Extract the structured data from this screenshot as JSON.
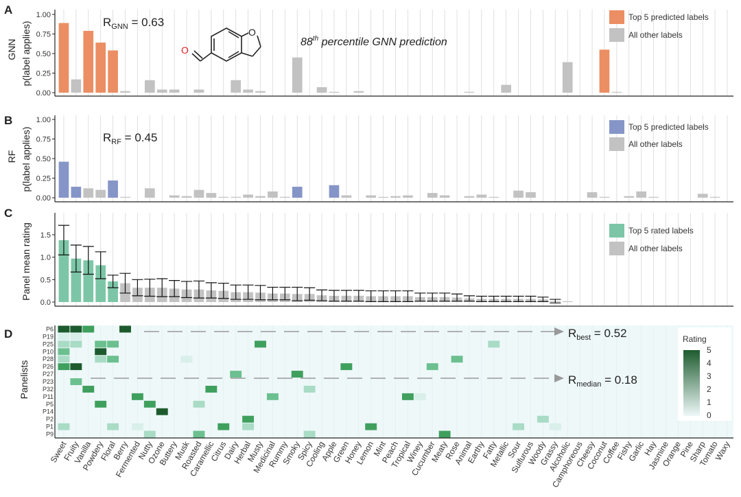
{
  "colors": {
    "gnn_top": "#EB8E63",
    "rf_top": "#8695C8",
    "rated_top": "#7CC6A7",
    "other": "#C2C2C2",
    "heat_bg": "#EEF8F9",
    "heat_max": "#1D5B2E",
    "axis": "#222222",
    "vline": "#D8D8D8"
  },
  "chart_data": {
    "type": "bar",
    "categories": [
      "Sweet",
      "Fruity",
      "Vanilla",
      "Powdery",
      "Floral",
      "Berry",
      "Fermented",
      "Nutty",
      "Ozone",
      "Buttery",
      "Musk",
      "Roasted",
      "Caramellic",
      "Citrus",
      "Dairy",
      "Herbal",
      "Musty",
      "Medicinal",
      "Rummy",
      "Smoky",
      "Spicy",
      "Cooling",
      "Apple",
      "Green",
      "Honey",
      "Lemon",
      "Mint",
      "Peach",
      "Tropical",
      "Winey",
      "Cucumber",
      "Meaty",
      "Rose",
      "Animal",
      "Earthy",
      "Fatty",
      "Metallic",
      "Sour",
      "Sulfurous",
      "Woody",
      "Grassy",
      "Alcoholic",
      "Camphoreous",
      "Cheesy",
      "Coconut",
      "Coffee",
      "Fishy",
      "Garlic",
      "Hay",
      "Jasmine",
      "Orange",
      "Pine",
      "Sharp",
      "Tomato",
      "Waxy"
    ],
    "panels": [
      {
        "letter": "A",
        "type": "bar",
        "ylabel": "p(label applies)",
        "model": "GNN",
        "ylim": [
          0,
          1.0
        ],
        "yticks": [
          "0.00",
          "0.25",
          "0.50",
          "0.75",
          "1.00"
        ],
        "values": [
          0.89,
          0.17,
          0.79,
          0.64,
          0.54,
          0.02,
          0.0,
          0.16,
          0.04,
          0.04,
          0.0,
          0.04,
          0.0,
          0.0,
          0.16,
          0.04,
          0.02,
          0.0,
          0.0,
          0.45,
          0.0,
          0.07,
          0.01,
          0.0,
          0.02,
          0.0,
          0.0,
          0.0,
          0.0,
          0.0,
          0.0,
          0.0,
          0.0,
          0.01,
          0.0,
          0.0,
          0.1,
          0.0,
          0.0,
          0.0,
          0.0,
          0.39,
          0.0,
          0.0,
          0.55,
          0.01,
          0.0,
          0.0,
          0.0,
          0.0,
          0.0,
          0.0,
          0.0,
          0.0,
          0.0
        ],
        "highlight": [
          0,
          2,
          3,
          4,
          44
        ],
        "r_label": "R",
        "r_sub": "GNN",
        "r_value": " = 0.63",
        "annotation_sup": "th",
        "annotation_num": "88",
        "annotation_text": " percentile GNN prediction",
        "molecule_atom_label": "O",
        "legend": [
          "Top 5 predicted labels",
          "All other labels"
        ]
      },
      {
        "letter": "B",
        "type": "bar",
        "ylabel": "p(label applies)",
        "model": "RF",
        "ylim": [
          0,
          1.0
        ],
        "yticks": [
          "0.00",
          "0.25",
          "0.50",
          "0.75",
          "1.00"
        ],
        "values": [
          0.46,
          0.14,
          0.12,
          0.1,
          0.22,
          0.01,
          0.0,
          0.12,
          0.0,
          0.03,
          0.02,
          0.1,
          0.06,
          0.01,
          0.01,
          0.04,
          0.02,
          0.08,
          0.01,
          0.14,
          0.0,
          0.0,
          0.16,
          0.03,
          0.0,
          0.03,
          0.01,
          0.02,
          0.03,
          0.0,
          0.06,
          0.03,
          0.0,
          0.02,
          0.04,
          0.01,
          0.0,
          0.09,
          0.07,
          0.0,
          0.0,
          0.0,
          0.0,
          0.07,
          0.01,
          0.0,
          0.02,
          0.08,
          0.01,
          0.0,
          0.0,
          0.0,
          0.05,
          0.01,
          0.0
        ],
        "highlight": [
          0,
          1,
          4,
          19,
          22
        ],
        "r_label": "R",
        "r_sub": "RF",
        "r_value": " = 0.45",
        "legend": [
          "Top 5 predicted labels",
          "All other labels"
        ]
      },
      {
        "letter": "C",
        "type": "bar",
        "ylabel": "Panel mean rating",
        "ylim": [
          -0.1,
          1.85
        ],
        "yticks": [
          "0.0",
          "0.5",
          "1.0",
          "1.5"
        ],
        "values": [
          1.38,
          0.97,
          0.93,
          0.82,
          0.46,
          0.42,
          0.32,
          0.32,
          0.32,
          0.3,
          0.28,
          0.28,
          0.26,
          0.25,
          0.22,
          0.22,
          0.21,
          0.19,
          0.19,
          0.18,
          0.18,
          0.15,
          0.14,
          0.14,
          0.14,
          0.13,
          0.13,
          0.13,
          0.13,
          0.11,
          0.11,
          0.11,
          0.1,
          0.08,
          0.07,
          0.07,
          0.07,
          0.07,
          0.07,
          0.06,
          0.02,
          0.01,
          0.0,
          0.0,
          0.0,
          0.0,
          0.0,
          0.0,
          0.0,
          0.0,
          0.0,
          0.0,
          0.0,
          0.0,
          0.0
        ],
        "errors": [
          0.33,
          0.3,
          0.31,
          0.3,
          0.14,
          0.22,
          0.18,
          0.19,
          0.2,
          0.18,
          0.18,
          0.19,
          0.17,
          0.17,
          0.16,
          0.16,
          0.16,
          0.14,
          0.14,
          0.15,
          0.14,
          0.12,
          0.12,
          0.12,
          0.12,
          0.12,
          0.12,
          0.12,
          0.12,
          0.09,
          0.09,
          0.09,
          0.08,
          0.06,
          0.06,
          0.06,
          0.06,
          0.06,
          0.06,
          0.05,
          0.04,
          0.0,
          0.0,
          0.0,
          0.0,
          0.0,
          0.0,
          0.0,
          0.0,
          0.0,
          0.0,
          0.0,
          0.0,
          0.0,
          0.0
        ],
        "highlight": [
          0,
          1,
          2,
          3,
          4
        ],
        "legend": [
          "Top 5 rated labels",
          "All other labels"
        ]
      },
      {
        "letter": "D",
        "type": "heatmap",
        "ylabel": "Panelists",
        "rows": [
          "P6",
          "P19",
          "P25",
          "P10",
          "P28",
          "P26",
          "P27",
          "P23",
          "P32",
          "P11",
          "P5",
          "P14",
          "P2",
          "P1",
          "P9"
        ],
        "cells": [
          [
            0,
            5
          ],
          [
            1,
            5
          ],
          [
            2,
            4
          ],
          [
            5,
            5
          ],
          [
            0,
            1
          ],
          [
            1,
            1
          ],
          [
            0,
            2
          ],
          [
            1,
            2
          ],
          [
            3,
            3
          ],
          [
            4,
            3
          ],
          [
            16,
            4
          ],
          [
            35,
            2
          ],
          [
            0,
            3
          ],
          [
            3,
            5
          ],
          [
            0,
            2
          ],
          [
            3,
            2
          ],
          [
            4,
            3
          ],
          [
            10,
            1
          ],
          [
            32,
            3
          ],
          [
            0,
            4
          ],
          [
            1,
            5
          ],
          [
            23,
            4
          ],
          [
            30,
            3
          ],
          [
            14,
            3
          ],
          [
            19,
            4
          ],
          [
            1,
            3
          ],
          [
            2,
            4
          ],
          [
            12,
            4
          ],
          [
            20,
            2
          ],
          [
            6,
            4
          ],
          [
            17,
            3
          ],
          [
            28,
            4
          ],
          [
            29,
            1
          ],
          [
            3,
            4
          ],
          [
            7,
            4
          ],
          [
            11,
            2
          ],
          [
            8,
            5
          ],
          [
            15,
            4
          ],
          [
            39,
            2
          ],
          [
            0,
            2
          ],
          [
            4,
            2
          ],
          [
            6,
            1
          ],
          [
            13,
            4
          ],
          [
            15,
            2
          ],
          [
            25,
            4
          ],
          [
            37,
            2
          ],
          [
            40,
            1
          ],
          [
            7,
            2
          ],
          [
            11,
            3
          ],
          [
            20,
            2
          ],
          [
            31,
            4
          ]
        ],
        "legend_title": "Rating",
        "legend_ticks": [
          "0",
          "1",
          "2",
          "3",
          "4",
          "5"
        ],
        "r_best_label": "R",
        "r_best_sub": "best",
        "r_best_value": " = 0.52",
        "r_median_label": "R",
        "r_median_sub": "median",
        "r_median_value": " = 0.18"
      }
    ]
  }
}
